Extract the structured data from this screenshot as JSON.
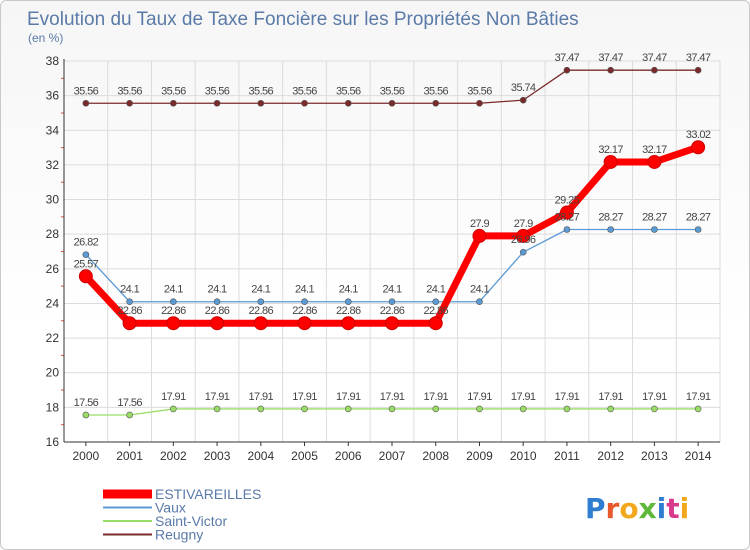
{
  "chart_data": {
    "type": "line",
    "title": "Evolution du Taux de Taxe Foncière sur les Propriétés Non Bâties",
    "subtitle": "(en %)",
    "xlabel": "",
    "ylabel": "",
    "ylim": [
      16,
      38
    ],
    "yticks": [
      "16",
      "18",
      "20",
      "22",
      "24",
      "26",
      "28",
      "30",
      "32",
      "34",
      "36",
      "38"
    ],
    "x": [
      "2000",
      "2001",
      "2002",
      "2003",
      "2004",
      "2005",
      "2006",
      "2007",
      "2008",
      "2009",
      "2010",
      "2011",
      "2012",
      "2013",
      "2014"
    ],
    "grid": true,
    "legend": "bottom-left",
    "series": [
      {
        "name": "ESTIVAREILLES",
        "color": "#ff0000",
        "values": [
          25.57,
          22.86,
          22.86,
          22.86,
          22.86,
          22.86,
          22.86,
          22.86,
          22.86,
          27.9,
          27.9,
          29.25,
          32.17,
          32.17,
          33.02
        ],
        "labels": [
          "25.57",
          "22.86",
          "22.86",
          "22.86",
          "22.86",
          "22.86",
          "22.86",
          "22.86",
          "22.86",
          "27.9",
          "27.9",
          "29.25",
          "32.17",
          "32.17",
          "33.02"
        ]
      },
      {
        "name": "Vaux",
        "color": "#5b9bd5",
        "values": [
          26.82,
          24.1,
          24.1,
          24.1,
          24.1,
          24.1,
          24.1,
          24.1,
          24.1,
          24.1,
          26.96,
          28.27,
          28.27,
          28.27,
          28.27
        ],
        "labels": [
          "26.82",
          "24.1",
          "24.1",
          "24.1",
          "24.1",
          "24.1",
          "24.1",
          "24.1",
          "24.1",
          "24.1",
          "26.96",
          "28.27",
          "28.27",
          "28.27",
          "28.27"
        ]
      },
      {
        "name": "Saint-Victor",
        "color": "#99dd66",
        "values": [
          17.56,
          17.56,
          17.91,
          17.91,
          17.91,
          17.91,
          17.91,
          17.91,
          17.91,
          17.91,
          17.91,
          17.91,
          17.91,
          17.91,
          17.91
        ],
        "labels": [
          "17.56",
          "17.56",
          "17.91",
          "17.91",
          "17.91",
          "17.91",
          "17.91",
          "17.91",
          "17.91",
          "17.91",
          "17.91",
          "17.91",
          "17.91",
          "17.91",
          "17.91"
        ]
      },
      {
        "name": "Reugny",
        "color": "#7a2a2a",
        "values": [
          35.56,
          35.56,
          35.56,
          35.56,
          35.56,
          35.56,
          35.56,
          35.56,
          35.56,
          35.56,
          35.74,
          37.47,
          37.47,
          37.47,
          37.47
        ],
        "labels": [
          "35.56",
          "35.56",
          "35.56",
          "35.56",
          "35.56",
          "35.56",
          "35.56",
          "35.56",
          "35.56",
          "35.56",
          "35.74",
          "37.47",
          "37.47",
          "37.47",
          "37.47"
        ]
      }
    ]
  },
  "branding": {
    "logo_text": "Proxiti",
    "logo_colors": [
      "#2e7dd1",
      "#e8582c",
      "#f2a81d",
      "#5fb83a",
      "#2e7dd1",
      "#d93a8c",
      "#f2a81d"
    ]
  }
}
